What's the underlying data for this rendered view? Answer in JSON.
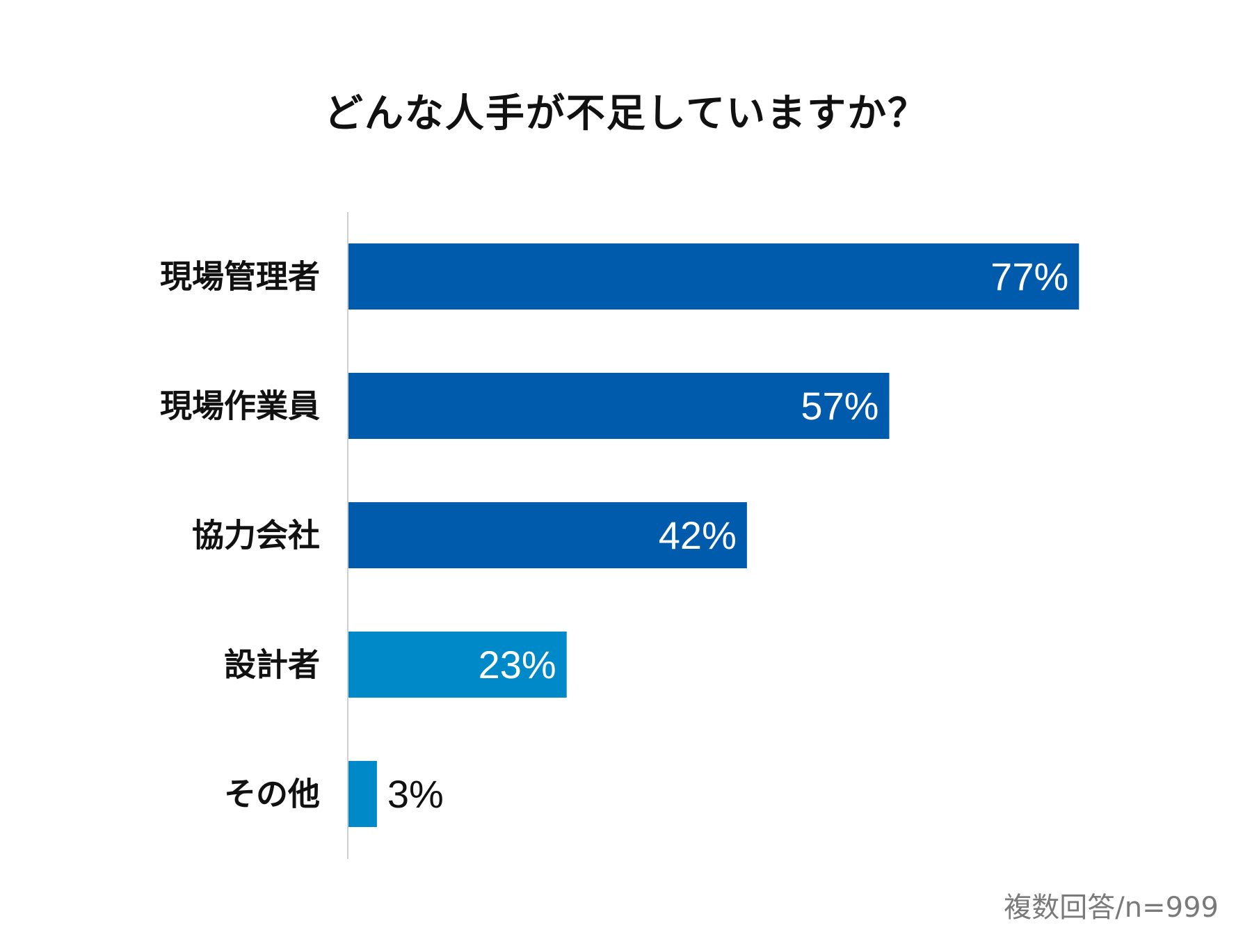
{
  "chart_data": {
    "type": "bar",
    "orientation": "horizontal",
    "title": "どんな人手が不足していますか？",
    "categories": [
      "現場管理者",
      "現場作業員",
      "協力会社",
      "設計者",
      "その他"
    ],
    "values": [
      77,
      57,
      42,
      23,
      3
    ],
    "value_labels": [
      "77%",
      "57%",
      "42%",
      "23%",
      "3%"
    ],
    "colors": [
      "#005bac",
      "#005bac",
      "#005bac",
      "#0089c8",
      "#0089c8"
    ],
    "value_label_colors": [
      "#ffffff",
      "#ffffff",
      "#ffffff",
      "#ffffff",
      "#111111"
    ],
    "xlim": [
      0,
      100
    ],
    "grid": false,
    "legend": "none"
  },
  "footnote": "複数回答/n=999"
}
